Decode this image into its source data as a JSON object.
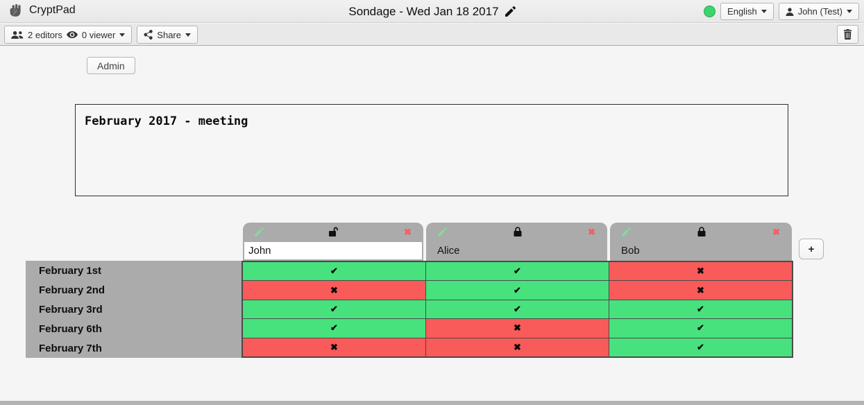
{
  "topbar": {
    "app_name": "CryptPad",
    "title": "Sondage - Wed Jan 18 2017",
    "language": "English",
    "user": "John (Test)"
  },
  "toolbar": {
    "editors": "2 editors",
    "viewers": "0 viewer",
    "share_label": "Share"
  },
  "admin": {
    "label": "Admin"
  },
  "description": {
    "text": "February 2017 - meeting"
  },
  "poll": {
    "columns": [
      {
        "name": "John",
        "editable": true,
        "locked": false
      },
      {
        "name": "Alice",
        "editable": false,
        "locked": true
      },
      {
        "name": "Bob",
        "editable": false,
        "locked": true
      }
    ],
    "rows": [
      "February 1st",
      "February 2nd",
      "February 3rd",
      "February 6th",
      "February 7th"
    ],
    "cells": [
      [
        "yes",
        "yes",
        "no"
      ],
      [
        "no",
        "yes",
        "no"
      ],
      [
        "yes",
        "yes",
        "yes"
      ],
      [
        "yes",
        "no",
        "yes"
      ],
      [
        "no",
        "no",
        "yes"
      ]
    ],
    "add_column_label": "+"
  },
  "icons": {
    "logo": "fist",
    "editors": "users",
    "viewers": "eye",
    "share": "share-alt",
    "delete": "trash",
    "edit_title": "pencil",
    "column_edit": "pencil-green",
    "column_locked": "lock",
    "column_unlocked": "unlock",
    "column_remove": "✖",
    "cell_yes": "✔",
    "cell_no": "✖",
    "user": "person",
    "status": "green-circle"
  },
  "colors": {
    "cell_yes": "#47e27d",
    "cell_no": "#f95a5a",
    "tab_gray": "#ababab",
    "status_green": "#3bd56d",
    "remove_red": "#f25f5f",
    "pencil_green": "#86d99c"
  }
}
